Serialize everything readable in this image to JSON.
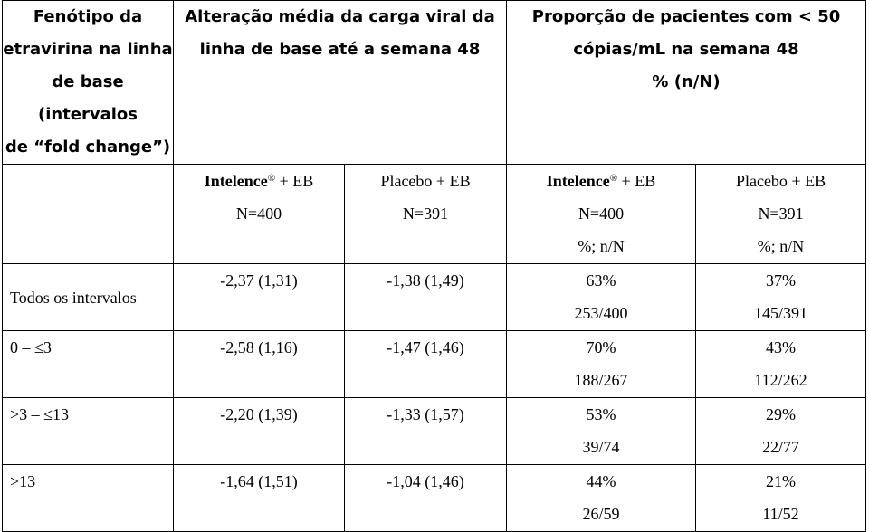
{
  "header": {
    "col1": [
      "Fenótipo da",
      "etravirina na linha",
      "de base (intervalos",
      "de “fold change”)"
    ],
    "col2": [
      "Alteração média da carga viral da",
      "linha de base até a semana 48"
    ],
    "col3": [
      "Proporção de pacientes com < 50",
      "cópias/mL na semana 48",
      "% (n/N)"
    ]
  },
  "subheader": {
    "intelence_name": "Intelence",
    "registered": "®",
    "intelence_suffix": " + EB",
    "placebo": "Placebo + EB",
    "n_intelence": "N=400",
    "n_placebo": "N=391",
    "pct_label": "%; n/N"
  },
  "rows": [
    {
      "label": "Todos os intervalos",
      "int_change": "-2,37 (1,31)",
      "pla_change": "-1,38 (1,49)",
      "int_pct": "63%",
      "int_n": "253/400",
      "pla_pct": "37%",
      "pla_n": "145/391"
    },
    {
      "label": "0 – ≤3",
      "int_change": "-2,58 (1,16)",
      "pla_change": "-1,47 (1,46)",
      "int_pct": "70%",
      "int_n": "188/267",
      "pla_pct": "43%",
      "pla_n": "112/262"
    },
    {
      "label": ">3 – ≤13",
      "int_change": "-2,20 (1,39)",
      "pla_change": "-1,33 (1,57)",
      "int_pct": "53%",
      "int_n": "39/74",
      "pla_pct": "29%",
      "pla_n": "22/77"
    },
    {
      "label": ">13",
      "int_change": "-1,64 (1,51)",
      "pla_change": "-1,04 (1,46)",
      "int_pct": "44%",
      "int_n": "26/59",
      "pla_pct": "21%",
      "pla_n": "11/52"
    }
  ]
}
